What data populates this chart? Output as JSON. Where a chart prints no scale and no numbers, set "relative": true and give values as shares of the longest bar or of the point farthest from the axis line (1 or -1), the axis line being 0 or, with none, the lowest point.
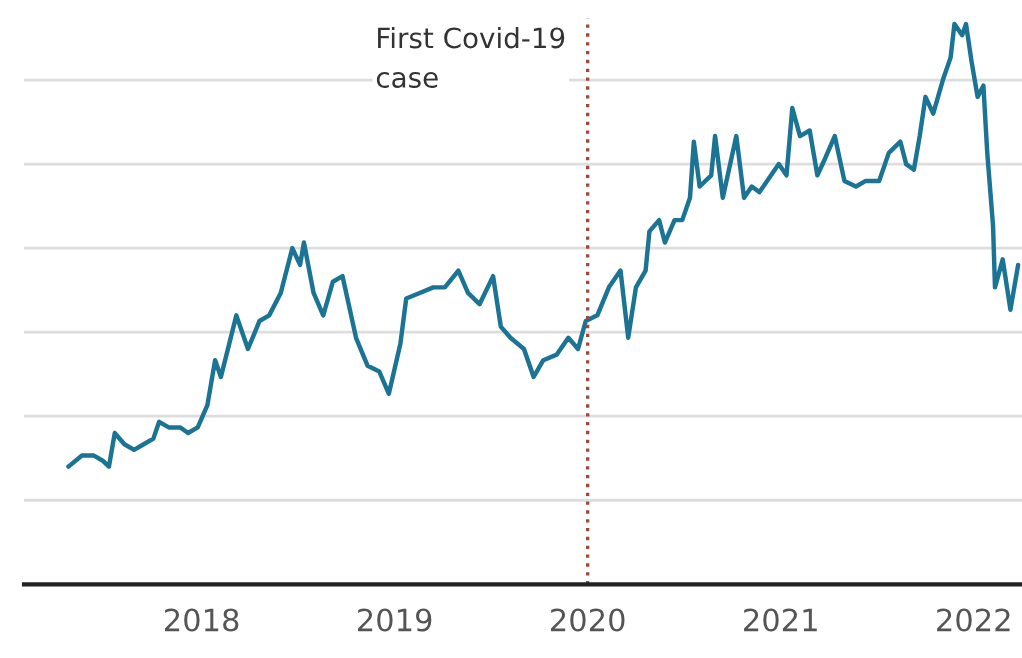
{
  "chart_data": {
    "type": "line",
    "relative": true,
    "grid": "y",
    "legend": false,
    "xlim": [
      2017.08,
      2022.25
    ],
    "xticks": [
      2018,
      2019,
      2020,
      2021,
      2022
    ],
    "ref_lines": [
      {
        "axis": "x",
        "value": 2020.0,
        "label": "First Covid-19\ncase",
        "color": "#9c4a3c",
        "line_style": "dotted"
      }
    ],
    "series": [
      {
        "color": "#1b7494",
        "x": [
          2017.31,
          2017.38,
          2017.44,
          2017.49,
          2017.52,
          2017.55,
          2017.6,
          2017.65,
          2017.7,
          2017.75,
          2017.78,
          2017.83,
          2017.89,
          2017.93,
          2017.98,
          2018.03,
          2018.07,
          2018.1,
          2018.18,
          2018.24,
          2018.3,
          2018.35,
          2018.41,
          2018.47,
          2018.51,
          2018.53,
          2018.58,
          2018.63,
          2018.68,
          2018.73,
          2018.8,
          2018.86,
          2018.92,
          2018.97,
          2019.03,
          2019.06,
          2019.13,
          2019.2,
          2019.26,
          2019.33,
          2019.38,
          2019.44,
          2019.51,
          2019.55,
          2019.6,
          2019.67,
          2019.72,
          2019.77,
          2019.84,
          2019.9,
          2019.95,
          2019.99,
          2020.05,
          2020.11,
          2020.17,
          2020.21,
          2020.25,
          2020.3,
          2020.32,
          2020.37,
          2020.4,
          2020.45,
          2020.49,
          2020.53,
          2020.55,
          2020.58,
          2020.64,
          2020.66,
          2020.7,
          2020.77,
          2020.81,
          2020.85,
          2020.89,
          2020.95,
          2020.99,
          2021.03,
          2021.06,
          2021.1,
          2021.15,
          2021.19,
          2021.23,
          2021.28,
          2021.33,
          2021.39,
          2021.44,
          2021.51,
          2021.56,
          2021.62,
          2021.65,
          2021.69,
          2021.72,
          2021.75,
          2021.79,
          2021.84,
          2021.88,
          2021.9,
          2021.94,
          2021.96,
          2021.99,
          2022.02,
          2022.05,
          2022.07,
          2022.1,
          2022.11,
          2022.15,
          2022.19,
          2022.23
        ],
        "values": [
          0.21,
          0.23,
          0.23,
          0.22,
          0.21,
          0.27,
          0.25,
          0.24,
          0.25,
          0.26,
          0.29,
          0.28,
          0.28,
          0.27,
          0.28,
          0.32,
          0.4,
          0.37,
          0.48,
          0.42,
          0.47,
          0.48,
          0.52,
          0.6,
          0.57,
          0.61,
          0.52,
          0.48,
          0.54,
          0.55,
          0.44,
          0.39,
          0.38,
          0.34,
          0.43,
          0.51,
          0.52,
          0.53,
          0.53,
          0.56,
          0.52,
          0.5,
          0.55,
          0.46,
          0.44,
          0.42,
          0.37,
          0.4,
          0.41,
          0.44,
          0.42,
          0.47,
          0.48,
          0.53,
          0.56,
          0.44,
          0.53,
          0.56,
          0.63,
          0.65,
          0.61,
          0.65,
          0.65,
          0.69,
          0.79,
          0.71,
          0.73,
          0.8,
          0.69,
          0.8,
          0.69,
          0.71,
          0.7,
          0.73,
          0.75,
          0.73,
          0.85,
          0.8,
          0.81,
          0.73,
          0.76,
          0.8,
          0.72,
          0.71,
          0.72,
          0.72,
          0.77,
          0.79,
          0.75,
          0.74,
          0.8,
          0.87,
          0.84,
          0.9,
          0.94,
          1.0,
          0.98,
          1.0,
          0.93,
          0.87,
          0.89,
          0.77,
          0.64,
          0.53,
          0.58,
          0.49,
          0.57
        ]
      }
    ]
  }
}
